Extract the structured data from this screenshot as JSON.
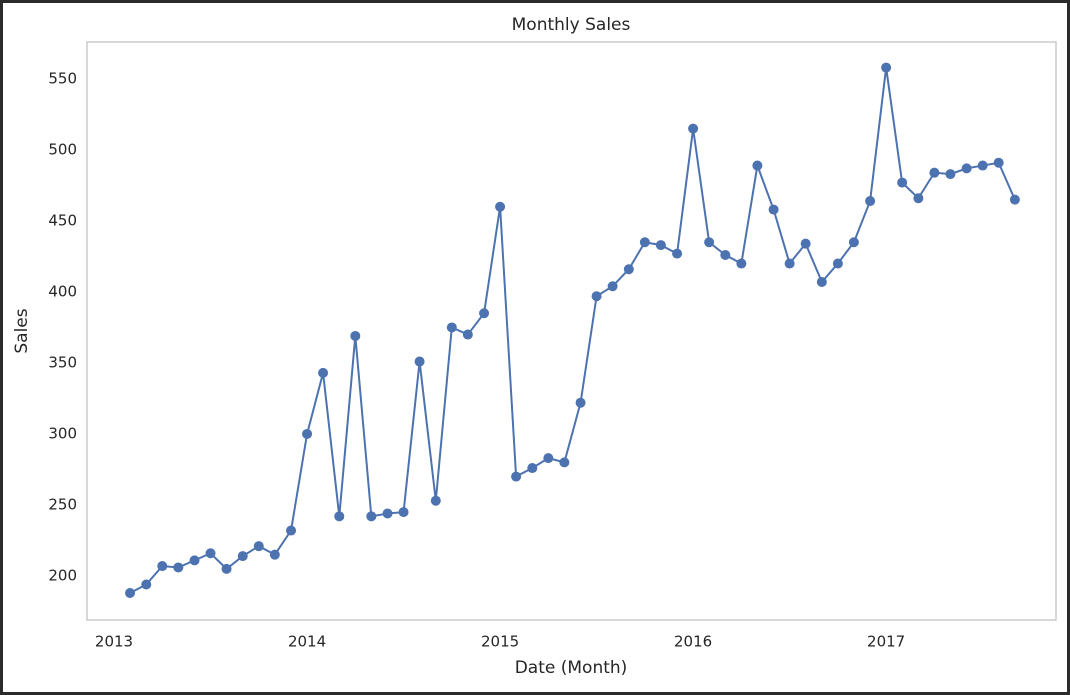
{
  "chart_data": {
    "type": "line",
    "title": "Monthly Sales",
    "x_label": "Date (Month)",
    "y_label": "Sales",
    "x": [
      2013.083,
      2013.167,
      2013.25,
      2013.333,
      2013.417,
      2013.5,
      2013.583,
      2013.667,
      2013.75,
      2013.833,
      2013.917,
      2014.0,
      2014.083,
      2014.167,
      2014.25,
      2014.333,
      2014.417,
      2014.5,
      2014.583,
      2014.667,
      2014.75,
      2014.833,
      2014.917,
      2015.0,
      2015.083,
      2015.167,
      2015.25,
      2015.333,
      2015.417,
      2015.5,
      2015.583,
      2015.667,
      2015.75,
      2015.833,
      2015.917,
      2016.0,
      2016.083,
      2016.167,
      2016.25,
      2016.333,
      2016.417,
      2016.5,
      2016.583,
      2016.667,
      2016.75,
      2016.833,
      2016.917,
      2017.0,
      2017.083,
      2017.167,
      2017.25,
      2017.333,
      2017.417,
      2017.5,
      2017.583,
      2017.667
    ],
    "series": [
      {
        "name": "Sales",
        "color": "#4c72b0",
        "values": [
          188,
          194,
          207,
          206,
          211,
          216,
          205,
          214,
          221,
          215,
          232,
          300,
          343,
          242,
          369,
          242,
          244,
          245,
          351,
          253,
          375,
          370,
          385,
          460,
          270,
          276,
          283,
          280,
          322,
          397,
          404,
          416,
          435,
          433,
          427,
          515,
          435,
          426,
          420,
          489,
          458,
          420,
          434,
          407,
          420,
          435,
          464,
          558,
          477,
          466,
          484,
          483,
          487,
          489,
          491,
          465
        ]
      }
    ],
    "xlim": [
      2012.86,
      2017.88
    ],
    "xticks": [
      2013,
      2014,
      2015,
      2016,
      2017
    ],
    "ylim": [
      169,
      576
    ],
    "yticks": [
      200,
      250,
      300,
      350,
      400,
      450,
      500,
      550
    ],
    "grid": false
  }
}
